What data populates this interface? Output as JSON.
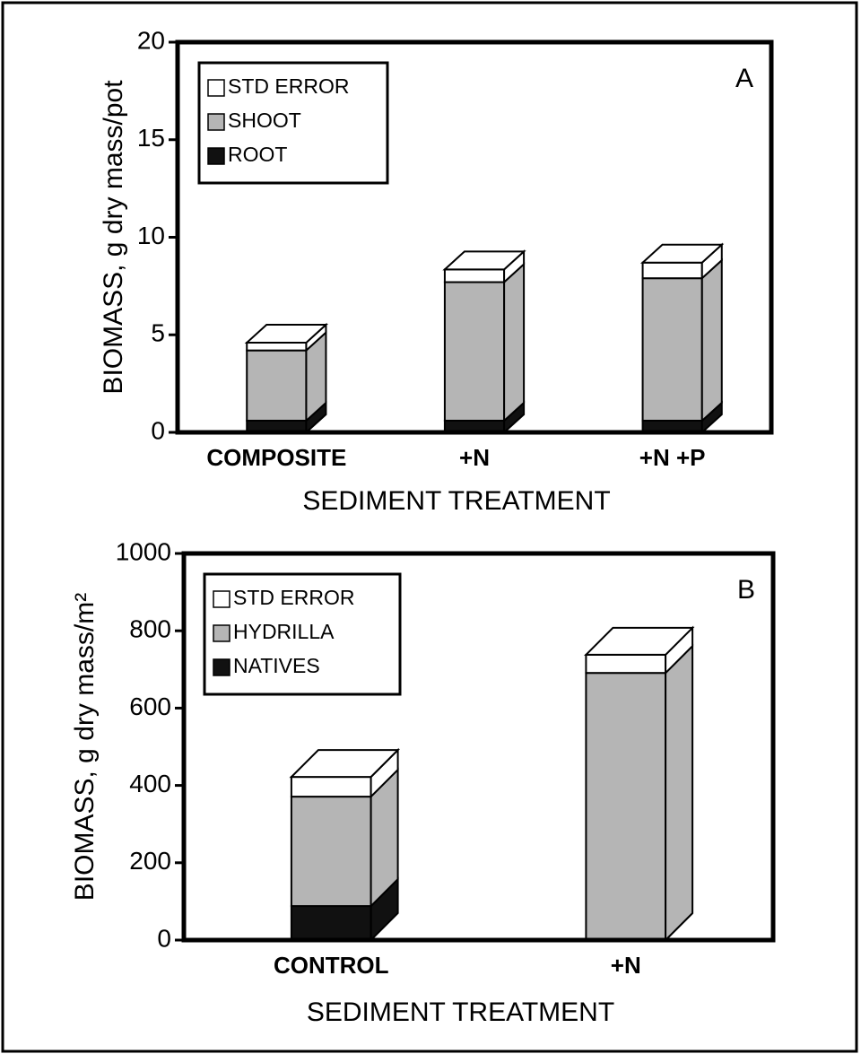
{
  "chart_data": [
    {
      "type": "bar",
      "panel_label": "A",
      "categories": [
        "COMPOSITE",
        "+N",
        "+N +P"
      ],
      "series": [
        {
          "name": "ROOT",
          "color": "#111111",
          "values": [
            0.6,
            0.6,
            0.6
          ]
        },
        {
          "name": "SHOOT",
          "color": "#b5b5b5",
          "values": [
            3.6,
            7.1,
            7.3
          ]
        },
        {
          "name": "STD ERROR",
          "color": "#ffffff",
          "values": [
            0.4,
            0.65,
            0.8
          ]
        }
      ],
      "ylim": [
        0,
        20
      ],
      "yticks": [
        0,
        5,
        10,
        15,
        20
      ],
      "xlabel": "SEDIMENT TREATMENT",
      "ylabel": "BIOMASS, g dry mass/pot"
    },
    {
      "type": "bar",
      "panel_label": "B",
      "categories": [
        "CONTROL",
        "+N"
      ],
      "series": [
        {
          "name": "NATIVES",
          "color": "#111111",
          "values": [
            88,
            0
          ]
        },
        {
          "name": "HYDRILLA",
          "color": "#b5b5b5",
          "values": [
            283,
            691
          ]
        },
        {
          "name": "STD ERROR",
          "color": "#ffffff",
          "values": [
            51,
            47
          ]
        }
      ],
      "ylim": [
        0,
        1000
      ],
      "yticks": [
        0,
        200,
        400,
        600,
        800,
        1000
      ],
      "xlabel": "SEDIMENT TREATMENT",
      "ylabel": "BIOMASS, g dry mass/m²"
    }
  ]
}
